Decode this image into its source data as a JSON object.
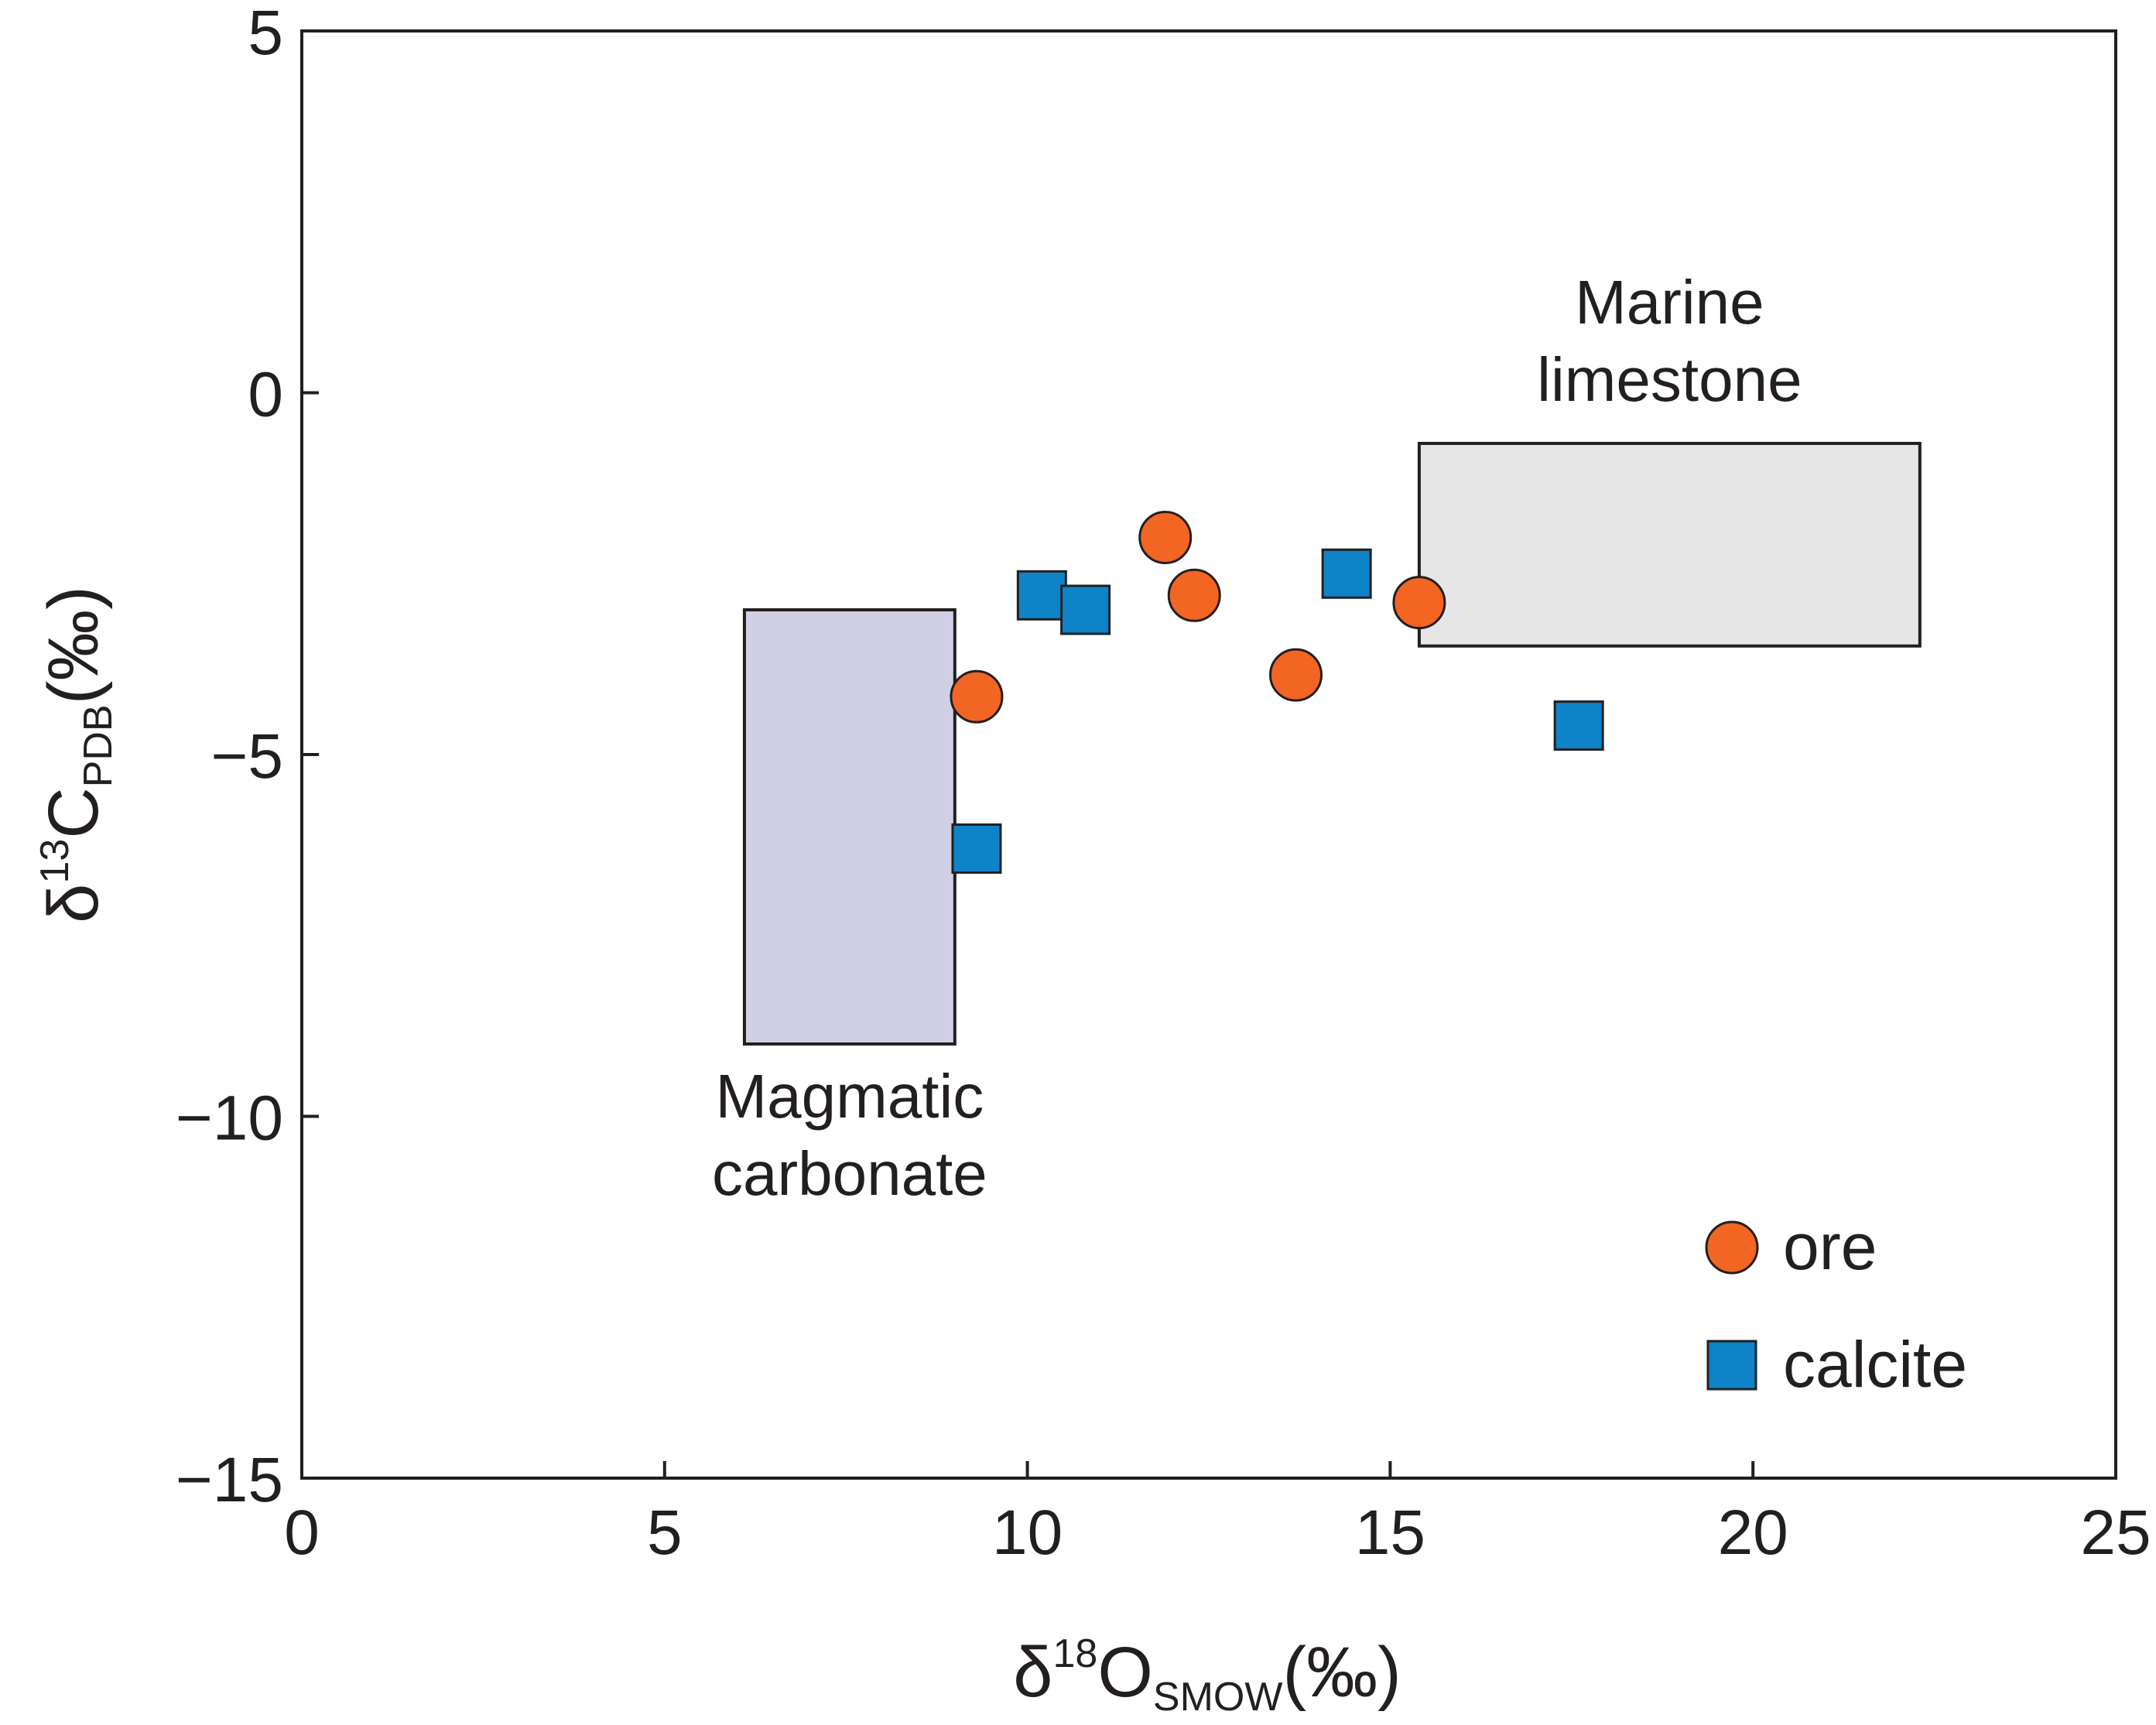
{
  "chart_data": {
    "type": "scatter",
    "xlabel": {
      "symbol": "δ",
      "sup": "18",
      "main": "O",
      "sub": "SMOW",
      "unit": "(‰)"
    },
    "ylabel": {
      "symbol": "δ",
      "sup": "13",
      "main": "C",
      "sub": "PDB",
      "unit": "(‰)"
    },
    "xlim": [
      0,
      25
    ],
    "ylim": [
      -15,
      5
    ],
    "xticks": [
      0,
      5,
      10,
      15,
      20,
      25
    ],
    "yticks": [
      5,
      0,
      -5,
      -10,
      -15
    ],
    "xtick_labels": [
      "0",
      "5",
      "10",
      "15",
      "20",
      "25"
    ],
    "ytick_labels": [
      "5",
      "0",
      "−5",
      "−10",
      "−15"
    ],
    "grid": false,
    "legend_position": "bottom-right",
    "series": [
      {
        "name": "ore",
        "marker": "circle",
        "color": "#f26522",
        "points": [
          [
            9.3,
            -4.2
          ],
          [
            11.9,
            -2.0
          ],
          [
            12.3,
            -2.8
          ],
          [
            13.7,
            -3.9
          ],
          [
            15.4,
            -2.9
          ]
        ]
      },
      {
        "name": "calcite",
        "marker": "square",
        "color": "#0f83c8",
        "points": [
          [
            10.2,
            -2.8
          ],
          [
            10.8,
            -3.0
          ],
          [
            9.3,
            -6.3
          ],
          [
            14.4,
            -2.5
          ],
          [
            17.6,
            -4.6
          ]
        ]
      }
    ],
    "regions": [
      {
        "name": "magmatic-carbonate",
        "lines": [
          "Magmatic",
          "carbonate"
        ],
        "x": [
          6.1,
          9.0
        ],
        "y": [
          -9.0,
          -3.0
        ],
        "fill": "#d1cfe4",
        "label_pos": "below"
      },
      {
        "name": "marine-limestone",
        "lines": [
          "Marine",
          "limestone"
        ],
        "x": [
          15.4,
          22.3
        ],
        "y": [
          -3.5,
          -0.7
        ],
        "fill": "#e6e6e6",
        "label_pos": "above"
      }
    ]
  }
}
